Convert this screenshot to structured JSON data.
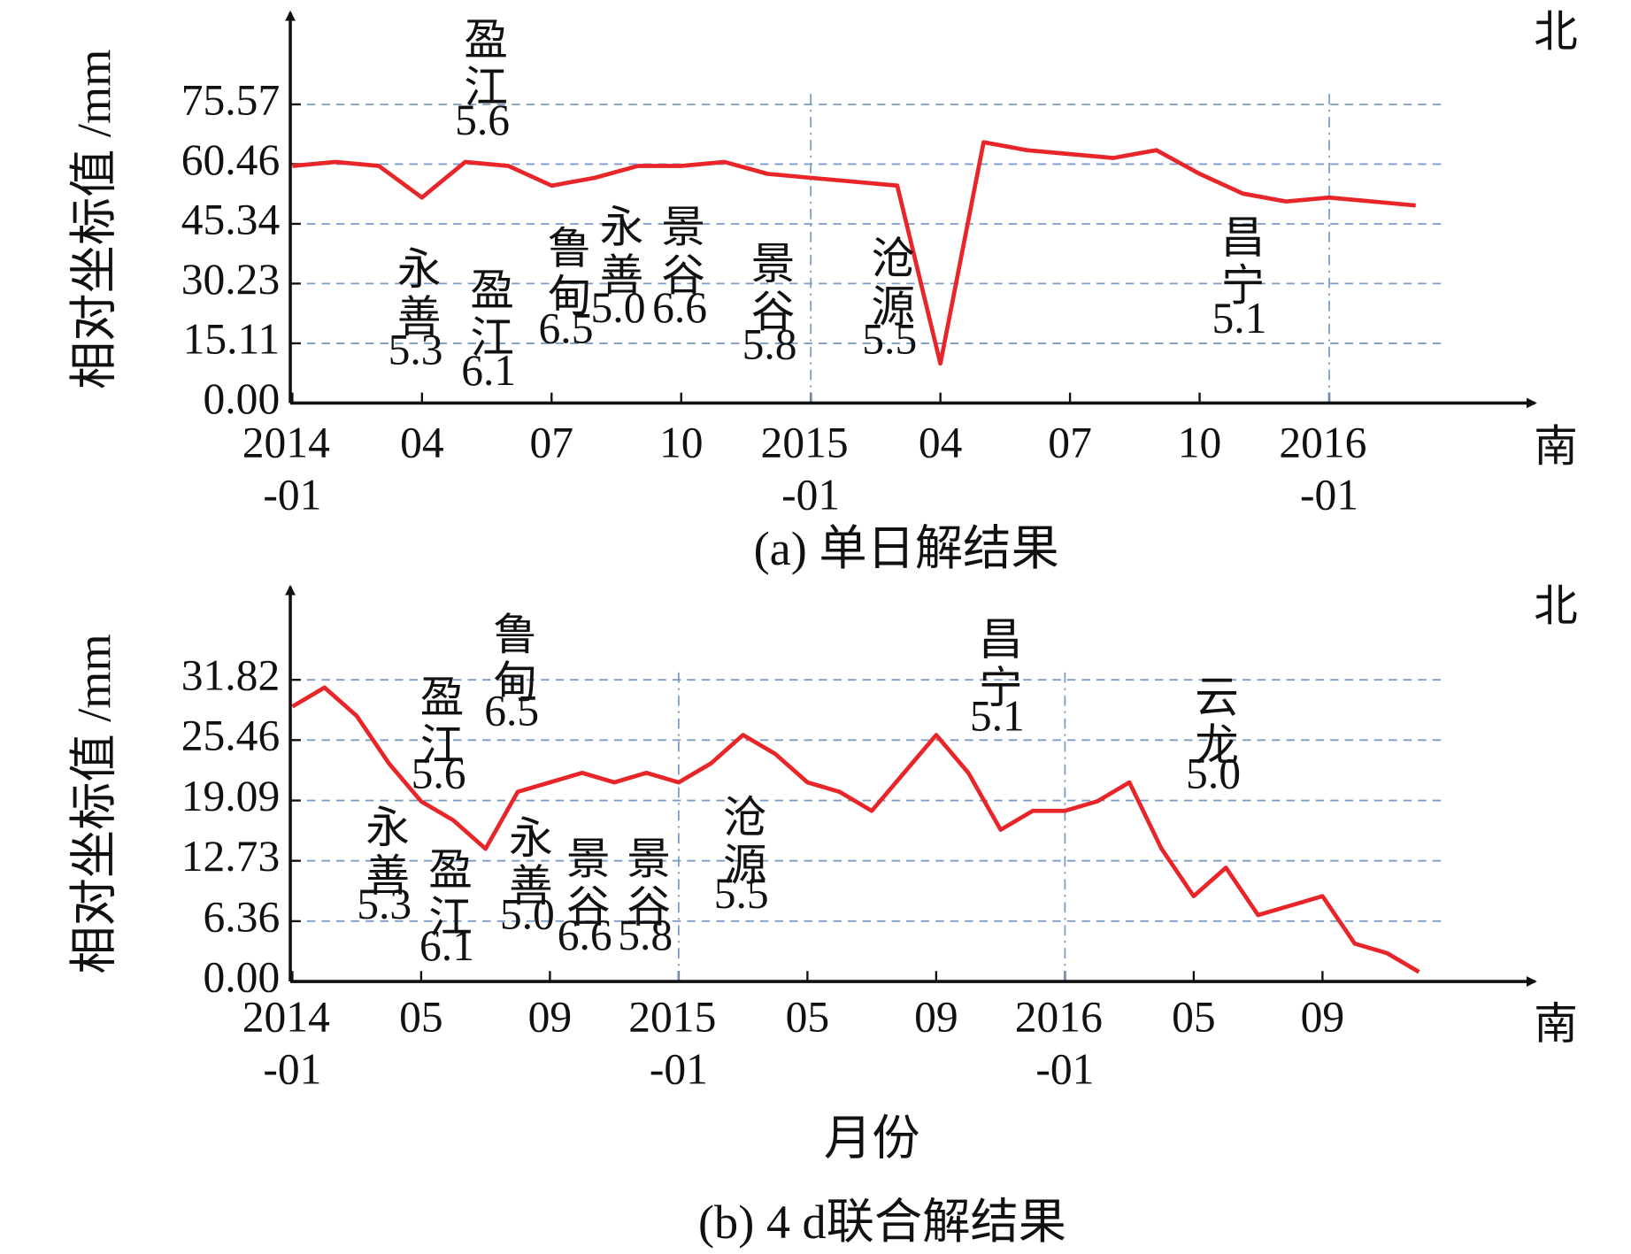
{
  "chart_data": [
    {
      "type": "line",
      "caption": "(a) 单日解结果",
      "y_label": "相对坐标值 /mm",
      "north_label": "北",
      "south_label": "南",
      "color": "#e8262a",
      "categories": [
        "2014-01",
        "2014-02",
        "2014-03",
        "2014-04",
        "2014-05",
        "2014-06",
        "2014-07",
        "2014-08",
        "2014-09",
        "2014-10",
        "2014-11",
        "2014-12",
        "2015-01",
        "2015-02",
        "2015-03",
        "2015-04",
        "2015-05",
        "2015-06",
        "2015-07",
        "2015-08",
        "2015-09",
        "2015-10",
        "2015-11",
        "2015-12",
        "2016-01",
        "2016-02",
        "2016-03"
      ],
      "values": [
        60,
        61,
        60,
        52,
        61,
        60,
        55,
        57,
        60,
        60,
        61,
        58,
        57,
        56,
        55,
        10,
        66,
        64,
        63,
        62,
        64,
        58,
        53,
        51,
        52,
        51,
        50
      ],
      "ylim": [
        0,
        96.7
      ],
      "yticks": [
        {
          "value": 0,
          "label": "0.00"
        },
        15.11,
        30.23,
        45.34,
        60.46,
        75.57
      ],
      "xticks": [
        {
          "value": "2014-01",
          "label": [
            "2014",
            "-01"
          ]
        },
        {
          "value": "2014-04",
          "label": "04"
        },
        {
          "value": "2014-07",
          "label": "07"
        },
        {
          "value": "2014-10",
          "label": "10"
        },
        {
          "value": "2015-01",
          "label": [
            "2015",
            "-01"
          ]
        },
        {
          "value": "2015-04",
          "label": "04"
        },
        {
          "value": "2015-07",
          "label": "07"
        },
        {
          "value": "2015-10",
          "label": "10"
        },
        {
          "value": "2016-01",
          "label": [
            "2016",
            "-01"
          ]
        }
      ],
      "events": [
        {
          "name": "永善",
          "magnitude": "5.3"
        },
        {
          "name": "盈江",
          "magnitude": "5.6"
        },
        {
          "name": "盈江",
          "magnitude": "6.1"
        },
        {
          "name": "鲁甸",
          "magnitude": "6.5"
        },
        {
          "name": "永善",
          "magnitude": "5.0"
        },
        {
          "name": "景谷",
          "magnitude": "6.6"
        },
        {
          "name": "景谷",
          "magnitude": "5.8"
        },
        {
          "name": "沧源",
          "magnitude": "5.5"
        },
        {
          "name": "昌宁",
          "magnitude": "5.1"
        }
      ]
    },
    {
      "type": "line",
      "caption": "(b) 4 d联合解结果",
      "x_label": "月份",
      "y_label": "相对坐标值 /mm",
      "north_label": "北",
      "south_label": "南",
      "color": "#e8262a",
      "categories": [
        "2014-01",
        "2014-02",
        "2014-03",
        "2014-04",
        "2014-05",
        "2014-06",
        "2014-07",
        "2014-08",
        "2014-09",
        "2014-10",
        "2014-11",
        "2014-12",
        "2015-01",
        "2015-02",
        "2015-03",
        "2015-04",
        "2015-05",
        "2015-06",
        "2015-07",
        "2015-08",
        "2015-09",
        "2015-10",
        "2015-11",
        "2015-12",
        "2016-01",
        "2016-02",
        "2016-03",
        "2016-04",
        "2016-05",
        "2016-06",
        "2016-07",
        "2016-08",
        "2016-09",
        "2016-10",
        "2016-11",
        "2016-12"
      ],
      "values": [
        29,
        31,
        28,
        23,
        19,
        17,
        14,
        20,
        21,
        22,
        21,
        22,
        21,
        23,
        26,
        24,
        21,
        20,
        18,
        22,
        26,
        22,
        16,
        18,
        18,
        19,
        21,
        14,
        9,
        12,
        7,
        8,
        9,
        4,
        3,
        1
      ],
      "ylim": [
        0,
        40.75
      ],
      "yticks": [
        {
          "value": 0,
          "label": "0.00"
        },
        6.36,
        12.73,
        19.09,
        25.46,
        31.82
      ],
      "xticks": [
        {
          "value": "2014-01",
          "label": [
            "2014",
            "-01"
          ]
        },
        {
          "value": "2014-05",
          "label": "05"
        },
        {
          "value": "2014-09",
          "label": "09"
        },
        {
          "value": "2015-01",
          "label": [
            "2015",
            "-01"
          ]
        },
        {
          "value": "2015-05",
          "label": "05"
        },
        {
          "value": "2015-09",
          "label": "09"
        },
        {
          "value": "2016-01",
          "label": [
            "2016",
            "-01"
          ]
        },
        {
          "value": "2016-05",
          "label": "05"
        },
        {
          "value": "2016-09",
          "label": "09"
        }
      ],
      "events": [
        {
          "name": "永善",
          "magnitude": "5.3"
        },
        {
          "name": "盈江",
          "magnitude": "5.6"
        },
        {
          "name": "盈江",
          "magnitude": "6.1"
        },
        {
          "name": "鲁甸",
          "magnitude": "6.5"
        },
        {
          "name": "永善",
          "magnitude": "5.0"
        },
        {
          "name": "景谷",
          "magnitude": "6.6"
        },
        {
          "name": "景谷",
          "magnitude": "5.8"
        },
        {
          "name": "沧源",
          "magnitude": "5.5"
        },
        {
          "name": "昌宁",
          "magnitude": "5.1"
        },
        {
          "name": "云龙",
          "magnitude": "5.0"
        }
      ]
    }
  ]
}
